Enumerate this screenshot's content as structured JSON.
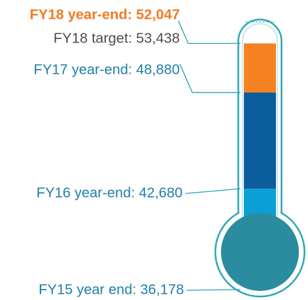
{
  "chart_data": {
    "type": "thermometer",
    "labels": [
      "FY18 year-end: 52,047",
      "FY17 year-end: 48,880",
      "FY16 year-end: 42,680",
      "FY15 year end: 36,178"
    ],
    "values": [
      52047,
      48880,
      42680,
      36178
    ],
    "colors": [
      "#f58220",
      "#0b5d9b",
      "#0aa0d6",
      "#2a8c9e"
    ],
    "target": {
      "label": "FY18 target: 53,438",
      "value": 53438
    },
    "outline_color": "#2fa9b9",
    "ylim": [
      36000,
      53500
    ]
  }
}
